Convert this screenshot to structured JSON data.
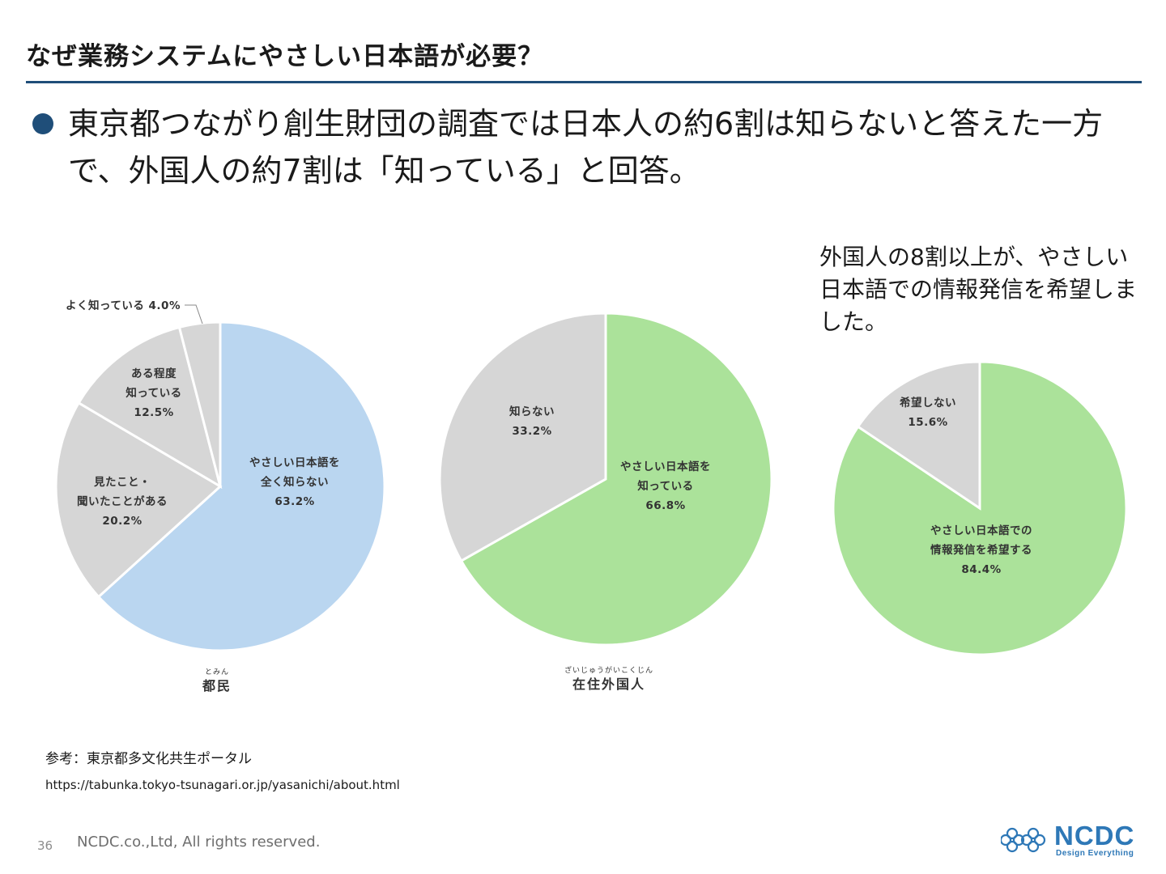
{
  "header": {
    "title": "なぜ業務システムにやさしい日本語が必要？"
  },
  "bullet": {
    "text": "東京都つながり創生財団の調査では日本人の約6割は知らないと答えた一方で、外国人の約7割は「知っている」と回答。"
  },
  "callout": {
    "text": "外国人の8割以上が、やさしい日本語での情報発信を希望しました。"
  },
  "colors": {
    "blue_slice": "#bad6f0",
    "green_slice": "#abe29a",
    "gray_slice": "#d6d6d6",
    "accent": "#1f4e79",
    "logo": "#2e78b7"
  },
  "chart_data": [
    {
      "type": "pie",
      "title": "都民",
      "title_ruby": "とみん",
      "slices": [
        {
          "lines": [
            "やさしい日本語を",
            "全く知らない"
          ],
          "value_label": "63.2%",
          "value": 63.2,
          "color": "#bad6f0"
        },
        {
          "lines": [
            "見たこと・",
            "聞いたことがある"
          ],
          "value_label": "20.2%",
          "value": 20.2,
          "color": "#d6d6d6"
        },
        {
          "lines": [
            "ある程度",
            "知っている"
          ],
          "value_label": "12.5%",
          "value": 12.5,
          "color": "#d6d6d6"
        },
        {
          "lines": [
            "よく知っている"
          ],
          "value_label": "4.0%",
          "value": 4.0,
          "color": "#d6d6d6"
        }
      ]
    },
    {
      "type": "pie",
      "title": "在住外国人",
      "title_ruby": "ざいじゅうがいこくじん",
      "slices": [
        {
          "lines": [
            "やさしい日本語を",
            "知っている"
          ],
          "value_label": "66.8%",
          "value": 66.8,
          "color": "#abe29a"
        },
        {
          "lines": [
            "知らない"
          ],
          "value_label": "33.2%",
          "value": 33.2,
          "color": "#d6d6d6"
        }
      ]
    },
    {
      "type": "pie",
      "title": "",
      "slices": [
        {
          "lines": [
            "やさしい日本語での",
            "情報発信を希望する"
          ],
          "value_label": "84.4%",
          "value": 84.4,
          "color": "#abe29a"
        },
        {
          "lines": [
            "希望しない"
          ],
          "value_label": "15.6%",
          "value": 15.6,
          "color": "#d6d6d6"
        }
      ]
    }
  ],
  "footer": {
    "source_label": "参考：東京都多文化共生ポータル",
    "source_url": "https://tabunka.tokyo-tsunagari.or.jp/yasanichi/about.html",
    "page_number": "36",
    "copyright": "NCDC.co.,Ltd, All rights reserved.",
    "logo_text": "NCDC",
    "logo_tagline": "Design Everything",
    "logo_icon": "flower-pattern-icon"
  }
}
